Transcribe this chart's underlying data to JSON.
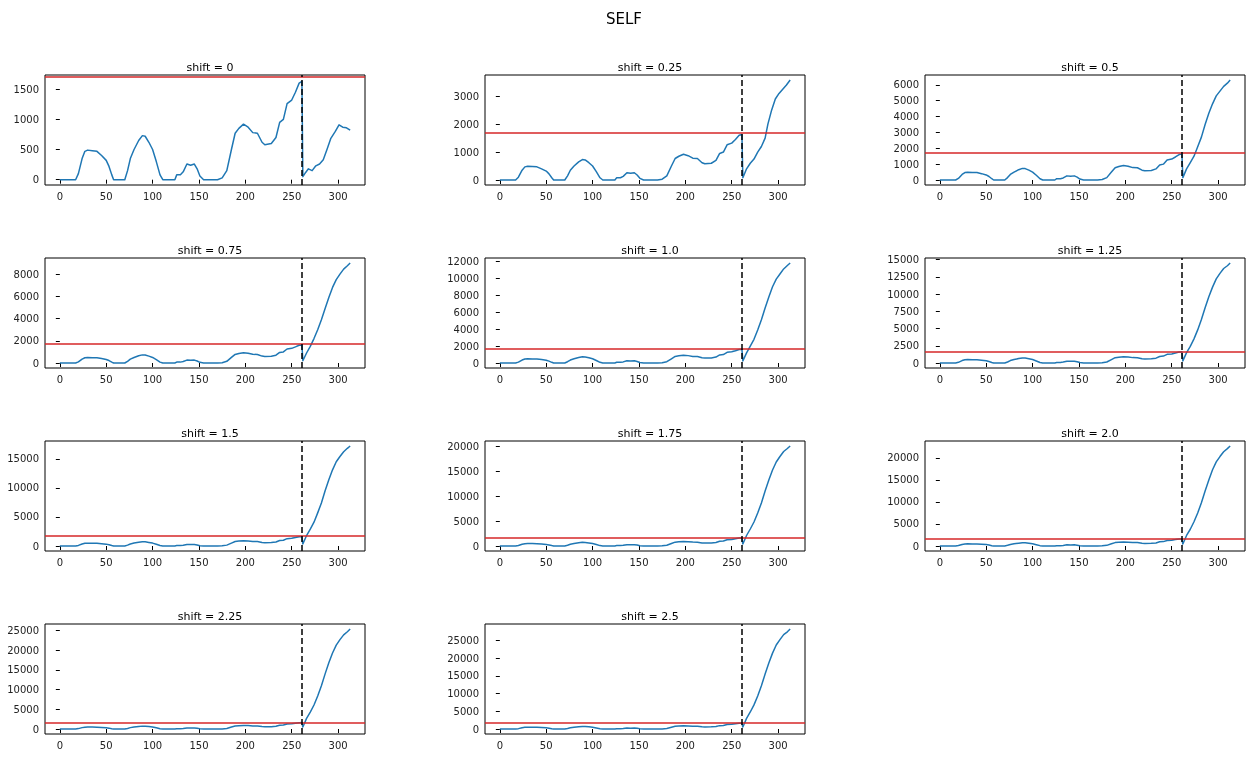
{
  "chart_data": [
    {
      "type": "line",
      "title": "shift = 0",
      "annotations": [
        "SELF"
      ],
      "marker": "none",
      "color": "#1f77b4",
      "xlim": [
        -16,
        329
      ],
      "xticks": [
        0,
        50,
        100,
        150,
        200,
        250,
        300
      ],
      "ylim": [
        -88,
        1735
      ],
      "yticks": [
        0,
        500,
        1000,
        1500
      ],
      "ref_lines": [
        {
          "axis": "y",
          "value": 1700,
          "color": "#d62728",
          "line_style": "solid"
        },
        {
          "axis": "x",
          "value": 261,
          "color": "#000000",
          "line_style": "dashed"
        }
      ],
      "x": [
        0,
        17,
        20,
        24,
        27,
        30,
        35,
        40,
        45,
        50,
        53,
        56,
        58,
        70,
        73,
        76,
        80,
        85,
        89,
        92,
        96,
        100,
        104,
        108,
        111,
        124,
        126,
        130,
        133,
        137,
        141,
        145,
        148,
        151,
        155,
        170,
        175,
        180,
        185,
        189,
        193,
        198,
        203,
        208,
        213,
        218,
        221,
        228,
        233,
        237,
        241,
        245,
        250,
        254,
        258,
        261,
        262,
        265,
        268,
        272,
        276,
        280,
        284,
        288,
        292,
        297,
        301,
        305,
        309,
        313
      ],
      "values": [
        0,
        0,
        100,
        350,
        470,
        490,
        480,
        470,
        400,
        320,
        220,
        80,
        0,
        0,
        150,
        350,
        500,
        650,
        730,
        720,
        620,
        500,
        300,
        80,
        0,
        0,
        80,
        80,
        130,
        260,
        240,
        260,
        180,
        60,
        0,
        0,
        30,
        150,
        500,
        770,
        850,
        920,
        870,
        780,
        770,
        620,
        580,
        600,
        700,
        950,
        1000,
        1260,
        1320,
        1450,
        1600,
        1630,
        50,
        120,
        180,
        150,
        230,
        260,
        330,
        500,
        680,
        800,
        910,
        870,
        860,
        820
      ]
    },
    {
      "type": "line",
      "title": "shift = 0.25",
      "marker": "none",
      "color": "#1f77b4",
      "xlim": [
        -16,
        329
      ],
      "xticks": [
        0,
        50,
        100,
        150,
        200,
        250,
        300
      ],
      "ylim": [
        -179,
        3759
      ],
      "yticks": [
        0,
        1000,
        2000,
        3000
      ],
      "ref_lines": [
        {
          "axis": "y",
          "value": 1700,
          "color": "#d62728",
          "line_style": "solid"
        },
        {
          "axis": "x",
          "value": 261,
          "color": "#000000",
          "line_style": "dashed"
        }
      ],
      "x": [
        0,
        17,
        20,
        24,
        27,
        30,
        35,
        40,
        45,
        50,
        53,
        56,
        58,
        70,
        73,
        76,
        80,
        85,
        89,
        92,
        96,
        100,
        104,
        108,
        111,
        124,
        126,
        130,
        133,
        137,
        141,
        145,
        148,
        151,
        155,
        170,
        175,
        180,
        185,
        189,
        193,
        198,
        203,
        208,
        213,
        218,
        221,
        228,
        233,
        237,
        241,
        245,
        250,
        254,
        258,
        261,
        262,
        266,
        270,
        274,
        278,
        282,
        286,
        289,
        293,
        297,
        301,
        305,
        309,
        313
      ],
      "values": [
        0,
        0,
        100,
        350,
        470,
        490,
        480,
        470,
        400,
        320,
        220,
        80,
        0,
        0,
        150,
        350,
        500,
        650,
        730,
        720,
        620,
        500,
        300,
        80,
        0,
        0,
        80,
        80,
        130,
        260,
        240,
        260,
        180,
        60,
        0,
        0,
        30,
        150,
        500,
        770,
        850,
        920,
        870,
        780,
        770,
        620,
        580,
        600,
        700,
        950,
        1000,
        1260,
        1320,
        1450,
        1600,
        1630,
        80,
        400,
        600,
        750,
        1000,
        1200,
        1500,
        2000,
        2500,
        2900,
        3100,
        3250,
        3400,
        3580
      ]
    },
    {
      "type": "line",
      "title": "shift = 0.5",
      "marker": "none",
      "color": "#1f77b4",
      "xlim": [
        -16,
        329
      ],
      "xticks": [
        0,
        50,
        100,
        150,
        200,
        250,
        300
      ],
      "ylim": [
        -315,
        6615
      ],
      "yticks": [
        0,
        1000,
        2000,
        3000,
        4000,
        5000,
        6000
      ],
      "ref_lines": [
        {
          "axis": "y",
          "value": 1700,
          "color": "#d62728",
          "line_style": "solid"
        },
        {
          "axis": "x",
          "value": 261,
          "color": "#000000",
          "line_style": "dashed"
        }
      ],
      "x": [
        0,
        17,
        20,
        24,
        27,
        30,
        35,
        40,
        45,
        50,
        53,
        56,
        58,
        70,
        73,
        76,
        80,
        85,
        89,
        92,
        96,
        100,
        104,
        108,
        111,
        124,
        126,
        130,
        133,
        137,
        141,
        145,
        148,
        151,
        155,
        170,
        175,
        180,
        185,
        189,
        193,
        198,
        203,
        208,
        213,
        218,
        221,
        228,
        233,
        237,
        241,
        245,
        250,
        254,
        258,
        261,
        262,
        266,
        270,
        274,
        278,
        282,
        286,
        290,
        294,
        298,
        302,
        306,
        310,
        313
      ],
      "values": [
        0,
        0,
        100,
        350,
        470,
        490,
        480,
        470,
        400,
        320,
        220,
        80,
        0,
        0,
        150,
        350,
        500,
        650,
        730,
        720,
        620,
        500,
        300,
        80,
        0,
        0,
        80,
        80,
        130,
        260,
        240,
        260,
        180,
        60,
        0,
        0,
        30,
        150,
        500,
        770,
        850,
        920,
        870,
        780,
        770,
        620,
        580,
        600,
        700,
        950,
        1000,
        1260,
        1320,
        1450,
        1600,
        1630,
        150,
        700,
        1100,
        1500,
        2100,
        2700,
        3500,
        4200,
        4800,
        5300,
        5600,
        5900,
        6100,
        6300
      ]
    },
    {
      "type": "line",
      "title": "shift = 0.75",
      "marker": "none",
      "color": "#1f77b4",
      "xlim": [
        -16,
        329
      ],
      "xticks": [
        0,
        50,
        100,
        150,
        200,
        250,
        300
      ],
      "ylim": [
        -450,
        9450
      ],
      "yticks": [
        0,
        2000,
        4000,
        6000,
        8000
      ],
      "ref_lines": [
        {
          "axis": "y",
          "value": 1700,
          "color": "#d62728",
          "line_style": "solid"
        },
        {
          "axis": "x",
          "value": 261,
          "color": "#000000",
          "line_style": "dashed"
        }
      ],
      "x": [
        0,
        17,
        20,
        24,
        27,
        30,
        35,
        40,
        45,
        50,
        53,
        56,
        58,
        70,
        73,
        76,
        80,
        85,
        89,
        92,
        96,
        100,
        104,
        108,
        111,
        124,
        126,
        130,
        133,
        137,
        141,
        145,
        148,
        151,
        155,
        170,
        175,
        180,
        185,
        189,
        193,
        198,
        203,
        208,
        213,
        218,
        221,
        228,
        233,
        237,
        241,
        245,
        250,
        254,
        258,
        261,
        262,
        266,
        270,
        274,
        278,
        282,
        286,
        290,
        294,
        298,
        302,
        306,
        310,
        313
      ],
      "values": [
        0,
        0,
        100,
        350,
        470,
        490,
        480,
        470,
        400,
        320,
        220,
        80,
        0,
        0,
        150,
        350,
        500,
        650,
        730,
        720,
        620,
        500,
        300,
        80,
        0,
        0,
        80,
        80,
        130,
        260,
        240,
        260,
        180,
        60,
        0,
        0,
        30,
        150,
        500,
        770,
        850,
        920,
        870,
        780,
        770,
        620,
        580,
        600,
        700,
        950,
        1000,
        1260,
        1320,
        1450,
        1600,
        1630,
        200,
        900,
        1500,
        2200,
        3000,
        3900,
        4900,
        5900,
        6800,
        7500,
        8000,
        8450,
        8750,
        9000
      ]
    },
    {
      "type": "line",
      "title": "shift = 1.0",
      "marker": "none",
      "color": "#1f77b4",
      "xlim": [
        -16,
        329
      ],
      "xticks": [
        0,
        50,
        100,
        150,
        200,
        250,
        300
      ],
      "ylim": [
        -590,
        12390
      ],
      "yticks": [
        0,
        2000,
        4000,
        6000,
        8000,
        10000,
        12000
      ],
      "ref_lines": [
        {
          "axis": "y",
          "value": 1700,
          "color": "#d62728",
          "line_style": "solid"
        },
        {
          "axis": "x",
          "value": 261,
          "color": "#000000",
          "line_style": "dashed"
        }
      ],
      "x": [
        0,
        17,
        20,
        24,
        27,
        30,
        35,
        40,
        45,
        50,
        53,
        56,
        58,
        70,
        73,
        76,
        80,
        85,
        89,
        92,
        96,
        100,
        104,
        108,
        111,
        124,
        126,
        130,
        133,
        137,
        141,
        145,
        148,
        151,
        155,
        170,
        175,
        180,
        185,
        189,
        193,
        198,
        203,
        208,
        213,
        218,
        221,
        228,
        233,
        237,
        241,
        245,
        250,
        254,
        258,
        261,
        262,
        266,
        270,
        274,
        278,
        282,
        286,
        290,
        294,
        298,
        302,
        306,
        310,
        313
      ],
      "values": [
        0,
        0,
        100,
        350,
        470,
        490,
        480,
        470,
        400,
        320,
        220,
        80,
        0,
        0,
        150,
        350,
        500,
        650,
        730,
        720,
        620,
        500,
        300,
        80,
        0,
        0,
        80,
        80,
        130,
        260,
        240,
        260,
        180,
        60,
        0,
        0,
        30,
        150,
        500,
        770,
        850,
        920,
        870,
        780,
        770,
        620,
        580,
        600,
        700,
        950,
        1000,
        1260,
        1320,
        1450,
        1600,
        1630,
        250,
        1200,
        2000,
        2800,
        3900,
        5100,
        6500,
        7800,
        9000,
        9900,
        10500,
        11100,
        11500,
        11800
      ]
    },
    {
      "type": "line",
      "title": "shift = 1.25",
      "marker": "none",
      "color": "#1f77b4",
      "xlim": [
        -16,
        329
      ],
      "xticks": [
        0,
        50,
        100,
        150,
        200,
        250,
        300
      ],
      "ylim": [
        -725,
        15225
      ],
      "yticks": [
        0,
        2500,
        5000,
        7500,
        10000,
        12500,
        15000
      ],
      "ref_lines": [
        {
          "axis": "y",
          "value": 1700,
          "color": "#d62728",
          "line_style": "solid"
        },
        {
          "axis": "x",
          "value": 261,
          "color": "#000000",
          "line_style": "dashed"
        }
      ],
      "x": [
        0,
        17,
        20,
        24,
        27,
        30,
        35,
        40,
        45,
        50,
        53,
        56,
        58,
        70,
        73,
        76,
        80,
        85,
        89,
        92,
        96,
        100,
        104,
        108,
        111,
        124,
        126,
        130,
        133,
        137,
        141,
        145,
        148,
        151,
        155,
        170,
        175,
        180,
        185,
        189,
        193,
        198,
        203,
        208,
        213,
        218,
        221,
        228,
        233,
        237,
        241,
        245,
        250,
        254,
        258,
        261,
        262,
        266,
        270,
        274,
        278,
        282,
        286,
        290,
        294,
        298,
        302,
        306,
        310,
        313
      ],
      "values": [
        0,
        0,
        100,
        350,
        470,
        490,
        480,
        470,
        400,
        320,
        220,
        80,
        0,
        0,
        150,
        350,
        500,
        650,
        730,
        720,
        620,
        500,
        300,
        80,
        0,
        0,
        80,
        80,
        130,
        260,
        240,
        260,
        180,
        60,
        0,
        0,
        30,
        150,
        500,
        770,
        850,
        920,
        870,
        780,
        770,
        620,
        580,
        600,
        700,
        950,
        1000,
        1260,
        1320,
        1450,
        1600,
        1630,
        300,
        1500,
        2400,
        3500,
        4800,
        6300,
        8000,
        9600,
        11000,
        12200,
        13000,
        13700,
        14100,
        14500
      ]
    },
    {
      "type": "line",
      "title": "shift = 1.5",
      "marker": "none",
      "color": "#1f77b4",
      "xlim": [
        -16,
        329
      ],
      "xticks": [
        0,
        50,
        100,
        150,
        200,
        250,
        300
      ],
      "ylim": [
        -860,
        18060
      ],
      "yticks": [
        0,
        5000,
        10000,
        15000
      ],
      "ref_lines": [
        {
          "axis": "y",
          "value": 1700,
          "color": "#d62728",
          "line_style": "solid"
        },
        {
          "axis": "x",
          "value": 261,
          "color": "#000000",
          "line_style": "dashed"
        }
      ],
      "x": [
        0,
        17,
        20,
        24,
        27,
        30,
        35,
        40,
        45,
        50,
        53,
        56,
        58,
        70,
        73,
        76,
        80,
        85,
        89,
        92,
        96,
        100,
        104,
        108,
        111,
        124,
        126,
        130,
        133,
        137,
        141,
        145,
        148,
        151,
        155,
        170,
        175,
        180,
        185,
        189,
        193,
        198,
        203,
        208,
        213,
        218,
        221,
        228,
        233,
        237,
        241,
        245,
        250,
        254,
        258,
        261,
        262,
        266,
        270,
        274,
        278,
        282,
        286,
        290,
        294,
        298,
        302,
        306,
        310,
        313
      ],
      "values": [
        0,
        0,
        100,
        350,
        470,
        490,
        480,
        470,
        400,
        320,
        220,
        80,
        0,
        0,
        150,
        350,
        500,
        650,
        730,
        720,
        620,
        500,
        300,
        80,
        0,
        0,
        80,
        80,
        130,
        260,
        240,
        260,
        180,
        60,
        0,
        0,
        30,
        150,
        500,
        770,
        850,
        920,
        870,
        780,
        770,
        620,
        580,
        600,
        700,
        950,
        1000,
        1260,
        1320,
        1450,
        1600,
        1630,
        350,
        1800,
        2900,
        4100,
        5700,
        7400,
        9500,
        11400,
        13100,
        14500,
        15400,
        16200,
        16800,
        17200
      ]
    },
    {
      "type": "line",
      "title": "shift = 1.75",
      "marker": "none",
      "color": "#1f77b4",
      "xlim": [
        -16,
        329
      ],
      "xticks": [
        0,
        50,
        100,
        150,
        200,
        250,
        300
      ],
      "ylim": [
        -1000,
        21000
      ],
      "yticks": [
        0,
        5000,
        10000,
        15000,
        20000
      ],
      "ref_lines": [
        {
          "axis": "y",
          "value": 1700,
          "color": "#d62728",
          "line_style": "solid"
        },
        {
          "axis": "x",
          "value": 261,
          "color": "#000000",
          "line_style": "dashed"
        }
      ],
      "x": [
        0,
        17,
        20,
        24,
        27,
        30,
        35,
        40,
        45,
        50,
        53,
        56,
        58,
        70,
        73,
        76,
        80,
        85,
        89,
        92,
        96,
        100,
        104,
        108,
        111,
        124,
        126,
        130,
        133,
        137,
        141,
        145,
        148,
        151,
        155,
        170,
        175,
        180,
        185,
        189,
        193,
        198,
        203,
        208,
        213,
        218,
        221,
        228,
        233,
        237,
        241,
        245,
        250,
        254,
        258,
        261,
        262,
        266,
        270,
        274,
        278,
        282,
        286,
        290,
        294,
        298,
        302,
        306,
        310,
        313
      ],
      "values": [
        0,
        0,
        100,
        350,
        470,
        490,
        480,
        470,
        400,
        320,
        220,
        80,
        0,
        0,
        150,
        350,
        500,
        650,
        730,
        720,
        620,
        500,
        300,
        80,
        0,
        0,
        80,
        80,
        130,
        260,
        240,
        260,
        180,
        60,
        0,
        0,
        30,
        150,
        500,
        770,
        850,
        920,
        870,
        780,
        770,
        620,
        580,
        600,
        700,
        950,
        1000,
        1260,
        1320,
        1450,
        1600,
        1630,
        400,
        2100,
        3400,
        4800,
        6600,
        8600,
        11000,
        13200,
        15200,
        16800,
        17900,
        18900,
        19500,
        20000
      ]
    },
    {
      "type": "line",
      "title": "shift = 2.0",
      "marker": "none",
      "color": "#1f77b4",
      "xlim": [
        -16,
        329
      ],
      "xticks": [
        0,
        50,
        100,
        150,
        200,
        250,
        300
      ],
      "ylim": [
        -1135,
        23835
      ],
      "yticks": [
        0,
        5000,
        10000,
        15000,
        20000
      ],
      "ref_lines": [
        {
          "axis": "y",
          "value": 1700,
          "color": "#d62728",
          "line_style": "solid"
        },
        {
          "axis": "x",
          "value": 261,
          "color": "#000000",
          "line_style": "dashed"
        }
      ],
      "x": [
        0,
        17,
        20,
        24,
        27,
        30,
        35,
        40,
        45,
        50,
        53,
        56,
        58,
        70,
        73,
        76,
        80,
        85,
        89,
        92,
        96,
        100,
        104,
        108,
        111,
        124,
        126,
        130,
        133,
        137,
        141,
        145,
        148,
        151,
        155,
        170,
        175,
        180,
        185,
        189,
        193,
        198,
        203,
        208,
        213,
        218,
        221,
        228,
        233,
        237,
        241,
        245,
        250,
        254,
        258,
        261,
        262,
        266,
        270,
        274,
        278,
        282,
        286,
        290,
        294,
        298,
        302,
        306,
        310,
        313
      ],
      "values": [
        0,
        0,
        100,
        350,
        470,
        490,
        480,
        470,
        400,
        320,
        220,
        80,
        0,
        0,
        150,
        350,
        500,
        650,
        730,
        720,
        620,
        500,
        300,
        80,
        0,
        0,
        80,
        80,
        130,
        260,
        240,
        260,
        180,
        60,
        0,
        0,
        30,
        150,
        500,
        770,
        850,
        920,
        870,
        780,
        770,
        620,
        580,
        600,
        700,
        950,
        1000,
        1260,
        1320,
        1450,
        1600,
        1630,
        450,
        2400,
        3800,
        5500,
        7500,
        9800,
        12500,
        15000,
        17300,
        19100,
        20300,
        21400,
        22100,
        22700
      ]
    },
    {
      "type": "line",
      "title": "shift = 2.25",
      "marker": "none",
      "color": "#1f77b4",
      "xlim": [
        -16,
        329
      ],
      "xticks": [
        0,
        50,
        100,
        150,
        200,
        250,
        300
      ],
      "ylim": [
        -1270,
        26670
      ],
      "yticks": [
        0,
        5000,
        10000,
        15000,
        20000,
        25000
      ],
      "ref_lines": [
        {
          "axis": "y",
          "value": 1700,
          "color": "#d62728",
          "line_style": "solid"
        },
        {
          "axis": "x",
          "value": 261,
          "color": "#000000",
          "line_style": "dashed"
        }
      ],
      "x": [
        0,
        17,
        20,
        24,
        27,
        30,
        35,
        40,
        45,
        50,
        53,
        56,
        58,
        70,
        73,
        76,
        80,
        85,
        89,
        92,
        96,
        100,
        104,
        108,
        111,
        124,
        126,
        130,
        133,
        137,
        141,
        145,
        148,
        151,
        155,
        170,
        175,
        180,
        185,
        189,
        193,
        198,
        203,
        208,
        213,
        218,
        221,
        228,
        233,
        237,
        241,
        245,
        250,
        254,
        258,
        261,
        262,
        266,
        270,
        274,
        278,
        282,
        286,
        290,
        294,
        298,
        302,
        306,
        310,
        313
      ],
      "values": [
        0,
        0,
        100,
        350,
        470,
        490,
        480,
        470,
        400,
        320,
        220,
        80,
        0,
        0,
        150,
        350,
        500,
        650,
        730,
        720,
        620,
        500,
        300,
        80,
        0,
        0,
        80,
        80,
        130,
        260,
        240,
        260,
        180,
        60,
        0,
        0,
        30,
        150,
        500,
        770,
        850,
        920,
        870,
        780,
        770,
        620,
        580,
        600,
        700,
        950,
        1000,
        1260,
        1320,
        1450,
        1600,
        1630,
        500,
        2700,
        4300,
        6100,
        8400,
        11000,
        14000,
        16800,
        19300,
        21300,
        22700,
        23900,
        24700,
        25400
      ]
    },
    {
      "type": "line",
      "title": "shift = 2.5",
      "marker": "none",
      "color": "#1f77b4",
      "xlim": [
        -16,
        329
      ],
      "xticks": [
        0,
        50,
        100,
        150,
        200,
        250,
        300
      ],
      "ylim": [
        -1410,
        29610
      ],
      "yticks": [
        0,
        5000,
        10000,
        15000,
        20000,
        25000
      ],
      "ref_lines": [
        {
          "axis": "y",
          "value": 1700,
          "color": "#d62728",
          "line_style": "solid"
        },
        {
          "axis": "x",
          "value": 261,
          "color": "#000000",
          "line_style": "dashed"
        }
      ],
      "x": [
        0,
        17,
        20,
        24,
        27,
        30,
        35,
        40,
        45,
        50,
        53,
        56,
        58,
        70,
        73,
        76,
        80,
        85,
        89,
        92,
        96,
        100,
        104,
        108,
        111,
        124,
        126,
        130,
        133,
        137,
        141,
        145,
        148,
        151,
        155,
        170,
        175,
        180,
        185,
        189,
        193,
        198,
        203,
        208,
        213,
        218,
        221,
        228,
        233,
        237,
        241,
        245,
        250,
        254,
        258,
        261,
        262,
        266,
        270,
        274,
        278,
        282,
        286,
        290,
        294,
        298,
        302,
        306,
        310,
        313
      ],
      "values": [
        0,
        0,
        100,
        350,
        470,
        490,
        480,
        470,
        400,
        320,
        220,
        80,
        0,
        0,
        150,
        350,
        500,
        650,
        730,
        720,
        620,
        500,
        300,
        80,
        0,
        0,
        80,
        80,
        130,
        260,
        240,
        260,
        180,
        60,
        0,
        0,
        30,
        150,
        500,
        770,
        850,
        920,
        870,
        780,
        770,
        620,
        580,
        600,
        700,
        950,
        1000,
        1260,
        1320,
        1450,
        1600,
        1630,
        550,
        3000,
        4800,
        6800,
        9300,
        12200,
        15500,
        18600,
        21400,
        23700,
        25200,
        26600,
        27400,
        28200
      ]
    }
  ]
}
